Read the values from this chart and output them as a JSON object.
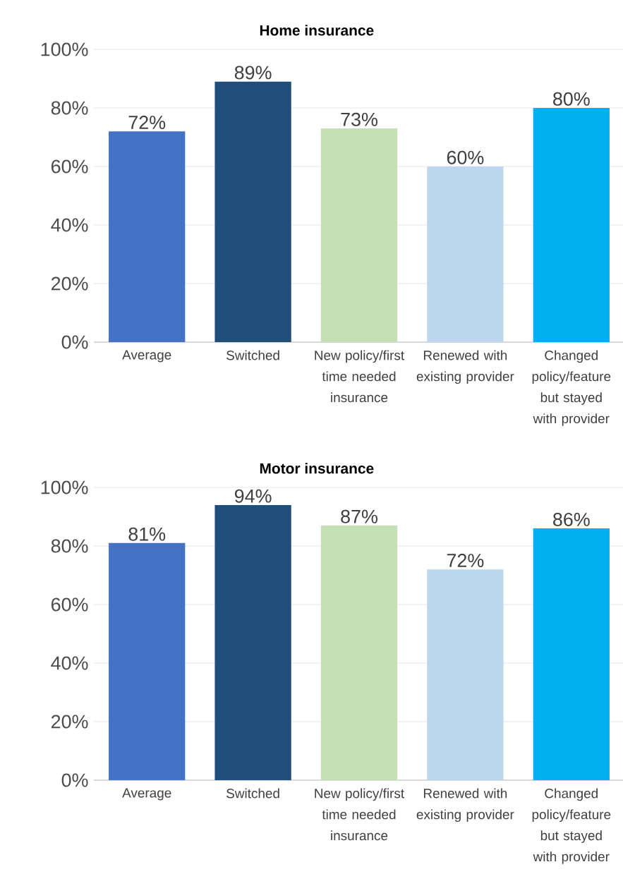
{
  "chart_data": [
    {
      "type": "bar",
      "title": "Home insurance",
      "categories": [
        "Average",
        "Switched",
        "New policy/first time needed insurance",
        "Renewed with existing provider",
        "Changed policy/feature but stayed with provider"
      ],
      "values": [
        72,
        89,
        73,
        60,
        80
      ],
      "colors": [
        "#4472c4",
        "#1f4e79",
        "#c5e0b4",
        "#bdd7ee",
        "#00b0f0"
      ],
      "value_labels": [
        "72%",
        "89%",
        "73%",
        "60%",
        "80%"
      ],
      "ylim": [
        0,
        100
      ],
      "yticks": [
        {
          "value": 0,
          "label": "0%"
        },
        {
          "value": 20,
          "label": "20%"
        },
        {
          "value": 40,
          "label": "40%"
        },
        {
          "value": 60,
          "label": "60%"
        },
        {
          "value": 80,
          "label": "80%"
        },
        {
          "value": 100,
          "label": "100%"
        }
      ],
      "grid": "y"
    },
    {
      "type": "bar",
      "title": "Motor insurance",
      "categories": [
        "Average",
        "Switched",
        "New policy/first time needed insurance",
        "Renewed with existing provider",
        "Changed policy/feature but stayed with provider"
      ],
      "values": [
        81,
        94,
        87,
        72,
        86
      ],
      "colors": [
        "#4472c4",
        "#1f4e79",
        "#c5e0b4",
        "#bdd7ee",
        "#00b0f0"
      ],
      "value_labels": [
        "81%",
        "94%",
        "87%",
        "72%",
        "86%"
      ],
      "ylim": [
        0,
        100
      ],
      "yticks": [
        {
          "value": 0,
          "label": "0%"
        },
        {
          "value": 20,
          "label": "20%"
        },
        {
          "value": 40,
          "label": "40%"
        },
        {
          "value": 60,
          "label": "60%"
        },
        {
          "value": 80,
          "label": "80%"
        },
        {
          "value": 100,
          "label": "100%"
        }
      ],
      "grid": "y"
    }
  ]
}
